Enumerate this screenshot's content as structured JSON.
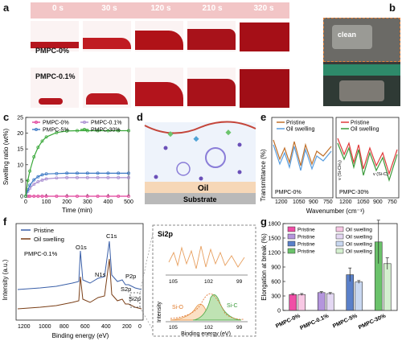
{
  "panels": {
    "a": "a",
    "b": "b",
    "c": "c",
    "d": "d",
    "e": "e",
    "f": "f",
    "g": "g"
  },
  "panel_a": {
    "times": [
      "0 s",
      "30 s",
      "120 s",
      "210 s",
      "320 s"
    ],
    "rows": [
      "PMPC-0%",
      "PMPC-0.1%"
    ]
  },
  "panel_b": {
    "label": "clean"
  },
  "panel_d": {
    "oil": "Oil",
    "substrate": "Substrate"
  },
  "chart_data": [
    {
      "panel": "c",
      "type": "line",
      "xlabel": "Time (min)",
      "ylabel": "Swelling ratio (wt%)",
      "xlim": [
        0,
        500
      ],
      "ylim": [
        0,
        25
      ],
      "xticks": [
        0,
        100,
        200,
        300,
        400,
        500
      ],
      "yticks": [
        0,
        5,
        10,
        15,
        20,
        25
      ],
      "legend_placement": "top",
      "series": [
        {
          "name": "PMPC-0%",
          "color": "#e0409a",
          "x": [
            0,
            10,
            20,
            40,
            60,
            80,
            100,
            150,
            200,
            250,
            300,
            350,
            400,
            450,
            500
          ],
          "y": [
            0,
            0,
            0,
            0,
            0,
            0,
            0,
            0,
            0,
            0,
            0,
            0,
            0,
            0,
            0
          ]
        },
        {
          "name": "PMPC-0.1%",
          "color": "#a78bd0",
          "x": [
            0,
            10,
            20,
            40,
            60,
            80,
            100,
            150,
            200,
            250,
            300,
            350,
            400,
            450,
            500
          ],
          "y": [
            0,
            1.5,
            2.5,
            3.8,
            4.6,
            5.1,
            5.5,
            5.8,
            5.9,
            5.9,
            5.9,
            5.9,
            5.9,
            5.9,
            5.9
          ]
        },
        {
          "name": "PMPC-5%",
          "color": "#3a77c4",
          "x": [
            0,
            10,
            20,
            40,
            60,
            80,
            100,
            150,
            200,
            250,
            300,
            350,
            400,
            450,
            500
          ],
          "y": [
            0,
            2,
            3.5,
            5.2,
            6.2,
            6.8,
            7.1,
            7.2,
            7.3,
            7.3,
            7.3,
            7.3,
            7.3,
            7.3,
            7.3
          ]
        },
        {
          "name": "PMPC-30%",
          "color": "#3aa83a",
          "x": [
            0,
            10,
            20,
            40,
            60,
            80,
            100,
            150,
            200,
            250,
            300,
            350,
            400,
            450,
            500
          ],
          "y": [
            0,
            5,
            8,
            12.5,
            15.5,
            17.5,
            18.8,
            20.2,
            20.7,
            20.8,
            20.8,
            20.8,
            20.8,
            20.8,
            20.8
          ]
        }
      ]
    },
    {
      "panel": "e",
      "type": "line",
      "xlabel": "Wavenumber (cm⁻¹)",
      "ylabel": "Transmittance (%)",
      "sub_panels": [
        {
          "label": "PMPC-0%",
          "xticks": [
            1200,
            1050,
            900,
            750
          ],
          "series": [
            {
              "name": "Pristine"
            },
            {
              "name": "Oil swelling"
            }
          ]
        },
        {
          "label": "PMPC-30%",
          "xticks": [
            1200,
            1050,
            900,
            750
          ],
          "series": [
            {
              "name": "Pristine"
            },
            {
              "name": "Oil swelling"
            }
          ],
          "annotations": [
            "v (Si-CH₃)",
            "v (Si-C)"
          ]
        }
      ]
    },
    {
      "panel": "f",
      "type": "line",
      "xlabel": "Binding energy (eV)",
      "ylabel": "Intensity (a.u.)",
      "sample": "PMPC-0.1%",
      "xticks": [
        1200,
        1000,
        800,
        600,
        400,
        200,
        0
      ],
      "series": [
        {
          "name": "Pristine",
          "color": "#3a5fa8"
        },
        {
          "name": "Oil swelling",
          "color": "#7a3e16"
        }
      ],
      "peaks": [
        "O1s",
        "C1s",
        "N1s",
        "P2p",
        "S2p",
        "Si2p"
      ],
      "inset": {
        "title": "Si2p",
        "xticks": [
          105,
          102,
          99
        ],
        "xlabel": "Binding energy (eV)",
        "ylabel": "Intensity",
        "components": [
          "Si-O",
          "Si-C"
        ]
      }
    },
    {
      "panel": "g",
      "type": "bar",
      "ylabel": "Elongation at break (%)",
      "categories": [
        "PMPC-0%",
        "PMPC-0.1%",
        "PMPC-5%",
        "PMPC-30%"
      ],
      "ylim": [
        0,
        1800
      ],
      "yticks": [
        0,
        300,
        600,
        900,
        1200,
        1500,
        1800
      ],
      "legend_placement": "top-left",
      "series": [
        {
          "name": "Pristine",
          "values": [
            330,
            370,
            740,
            1420
          ],
          "errors": [
            20,
            20,
            140,
            450
          ]
        },
        {
          "name": "Oil swelling",
          "values": [
            330,
            350,
            590,
            970
          ],
          "errors": [
            20,
            20,
            30,
            120
          ]
        }
      ],
      "colors": {
        "pristine": [
          "#f04ea6",
          "#b495dd",
          "#5a80c9",
          "#6ac26a"
        ],
        "oil": [
          "#f8c8e4",
          "#e4d8f3",
          "#c9d8f1",
          "#d4efcf"
        ]
      }
    }
  ]
}
